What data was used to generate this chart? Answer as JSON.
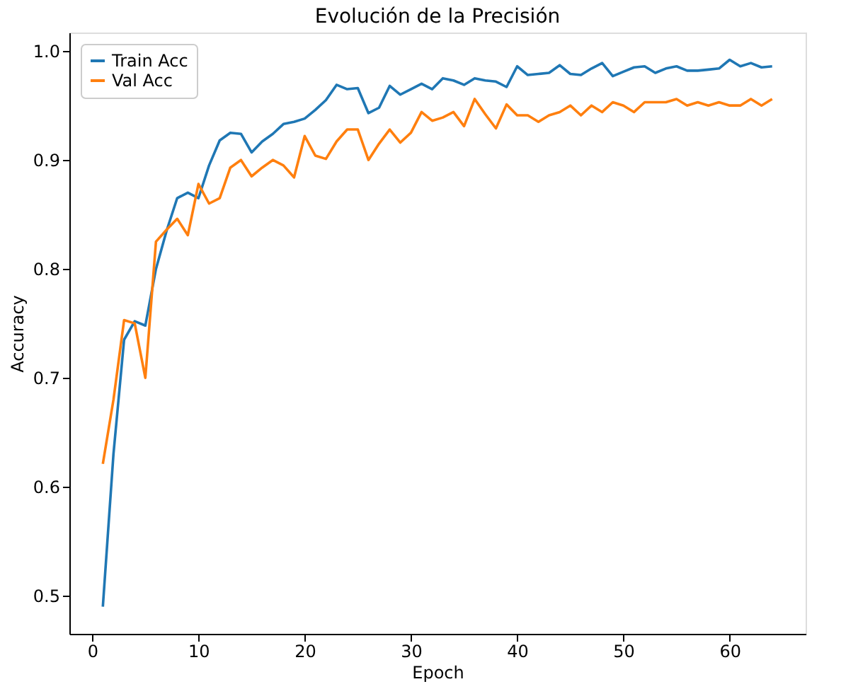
{
  "chart_data": {
    "type": "line",
    "title": "Evolución de la Precisión",
    "xlabel": "Epoch",
    "ylabel": "Accuracy",
    "x": [
      1,
      2,
      3,
      4,
      5,
      6,
      7,
      8,
      9,
      10,
      11,
      12,
      13,
      14,
      15,
      16,
      17,
      18,
      19,
      20,
      21,
      22,
      23,
      24,
      25,
      26,
      27,
      28,
      29,
      30,
      31,
      32,
      33,
      34,
      35,
      36,
      37,
      38,
      39,
      40,
      41,
      42,
      43,
      44,
      45,
      46,
      47,
      48,
      49,
      50,
      51,
      52,
      53,
      54,
      55,
      56,
      57,
      58,
      59,
      60,
      61,
      62,
      63,
      64
    ],
    "series": [
      {
        "name": "Train Acc",
        "color": "#1f77b4",
        "values": [
          0.49,
          0.63,
          0.735,
          0.752,
          0.748,
          0.8,
          0.835,
          0.865,
          0.87,
          0.865,
          0.895,
          0.918,
          0.925,
          0.924,
          0.907,
          0.917,
          0.924,
          0.933,
          0.935,
          0.938,
          0.946,
          0.955,
          0.969,
          0.965,
          0.966,
          0.943,
          0.948,
          0.968,
          0.96,
          0.965,
          0.97,
          0.965,
          0.975,
          0.973,
          0.969,
          0.975,
          0.973,
          0.972,
          0.967,
          0.986,
          0.978,
          0.979,
          0.98,
          0.987,
          0.979,
          0.978,
          0.984,
          0.989,
          0.977,
          0.981,
          0.985,
          0.986,
          0.98,
          0.984,
          0.986,
          0.982,
          0.982,
          0.983,
          0.984,
          0.992,
          0.986,
          0.989,
          0.985,
          0.986
        ]
      },
      {
        "name": "Val Acc",
        "color": "#ff7f0e",
        "values": [
          0.621,
          0.68,
          0.753,
          0.75,
          0.7,
          0.825,
          0.836,
          0.846,
          0.831,
          0.878,
          0.86,
          0.865,
          0.893,
          0.9,
          0.885,
          0.893,
          0.9,
          0.895,
          0.884,
          0.922,
          0.904,
          0.901,
          0.917,
          0.928,
          0.928,
          0.9,
          0.915,
          0.928,
          0.916,
          0.925,
          0.944,
          0.936,
          0.939,
          0.944,
          0.931,
          0.956,
          0.942,
          0.929,
          0.951,
          0.941,
          0.941,
          0.935,
          0.941,
          0.944,
          0.95,
          0.941,
          0.95,
          0.944,
          0.953,
          0.95,
          0.944,
          0.953,
          0.953,
          0.953,
          0.956,
          0.95,
          0.953,
          0.95,
          0.953,
          0.95,
          0.95,
          0.956,
          0.95,
          0.956
        ]
      }
    ],
    "xlim": [
      -2.15,
      67.15
    ],
    "xticks": [
      0,
      10,
      20,
      30,
      40,
      50,
      60
    ],
    "ylim": [
      0.465,
      1.017
    ],
    "yticks": [
      0.5,
      0.6,
      0.7,
      0.8,
      0.9,
      {
        "value": 1,
        "label": "1.0"
      }
    ],
    "grid": false,
    "legend": "top left",
    "marker": "none",
    "line_style": "solid"
  }
}
